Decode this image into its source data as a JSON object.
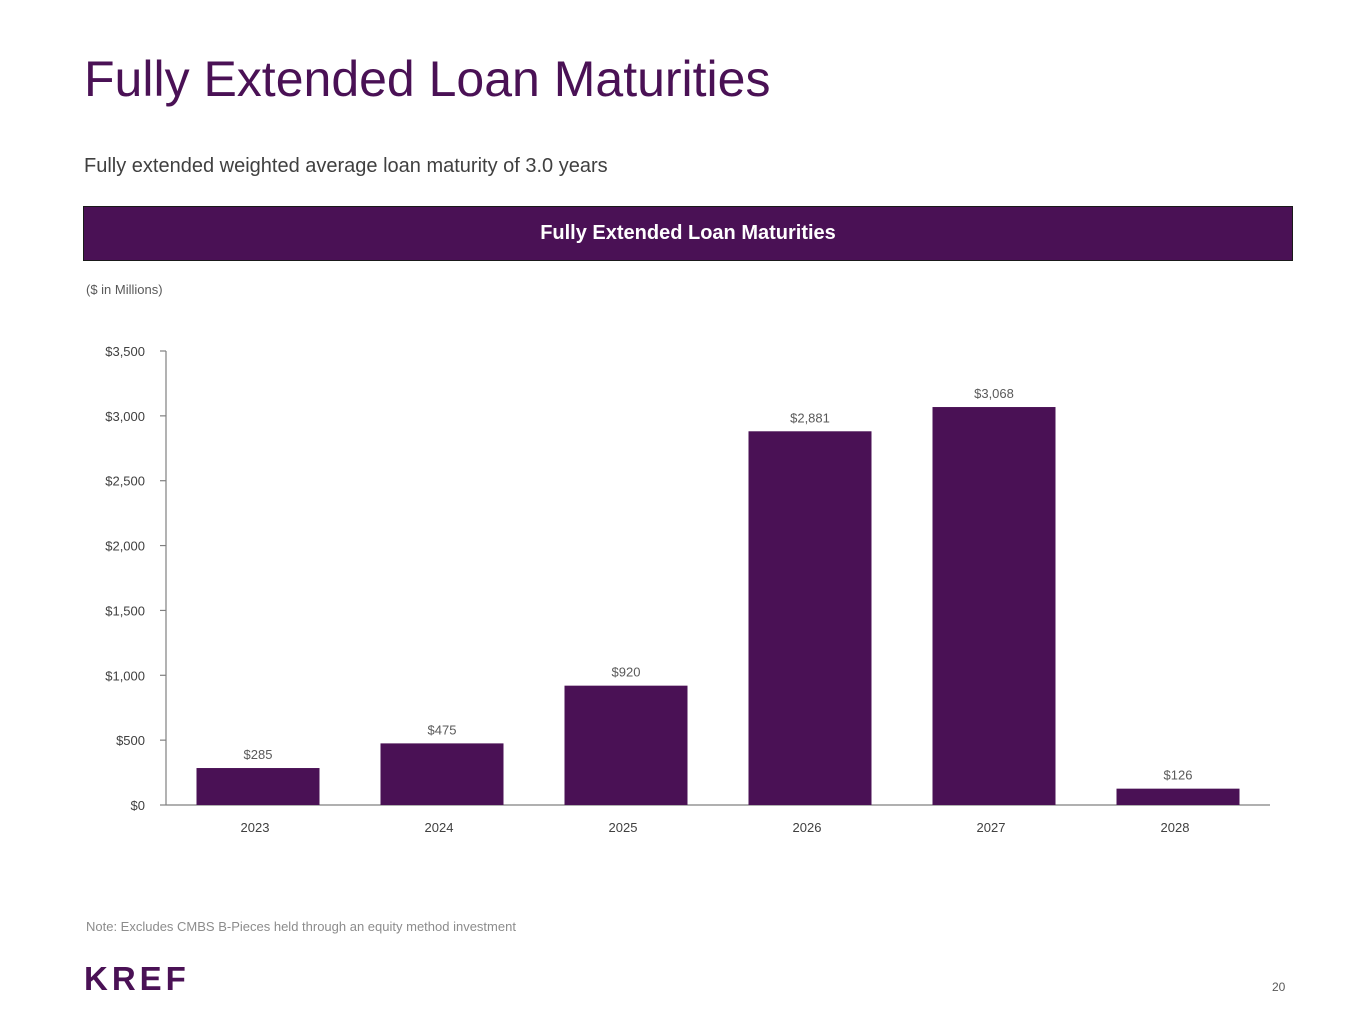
{
  "slide": {
    "title": "Fully Extended Loan Maturities",
    "subtitle": "Fully extended weighted average loan maturity of 3.0 years",
    "banner": "Fully Extended Loan Maturities",
    "units": "($ in Millions)",
    "note": "Note: Excludes CMBS B-Pieces held through an equity method investment",
    "logo": "KREF",
    "page_number": "20"
  },
  "colors": {
    "brand": "#4a1155",
    "bar": "#4a1155",
    "axis": "#808080",
    "text": "#404040"
  },
  "chart_data": {
    "type": "bar",
    "title": "Fully Extended Loan Maturities",
    "xlabel": "",
    "ylabel": "($ in Millions)",
    "categories": [
      "2023",
      "2024",
      "2025",
      "2026",
      "2027",
      "2028"
    ],
    "values": [
      285,
      475,
      920,
      2881,
      3068,
      126
    ],
    "data_labels": [
      "$285",
      "$475",
      "$920",
      "$2,881",
      "$3,068",
      "$126"
    ],
    "ylim": [
      0,
      3500
    ],
    "yticks": [
      0,
      500,
      1000,
      1500,
      2000,
      2500,
      3000,
      3500
    ],
    "ytick_labels": [
      "$0",
      "$500",
      "$1,000",
      "$1,500",
      "$2,000",
      "$2,500",
      "$3,000",
      "$3,500"
    ],
    "grid": false,
    "legend": "none"
  }
}
